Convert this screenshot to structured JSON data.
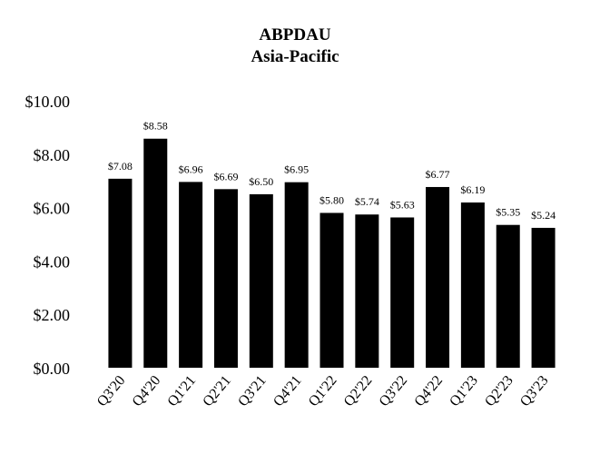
{
  "chart_data": {
    "type": "bar",
    "title": "ABPDAU",
    "subtitle": "Asia-Pacific",
    "xlabel": "",
    "ylabel": "",
    "categories": [
      "Q3'20",
      "Q4'20",
      "Q1'21",
      "Q2'21",
      "Q3'21",
      "Q4'21",
      "Q1'22",
      "Q2'22",
      "Q3'22",
      "Q4'22",
      "Q1'23",
      "Q2'23",
      "Q3'23"
    ],
    "values": [
      7.08,
      8.58,
      6.96,
      6.69,
      6.5,
      6.95,
      5.8,
      5.74,
      5.63,
      6.77,
      6.19,
      5.35,
      5.24
    ],
    "data_labels": [
      "$7.08",
      "$8.58",
      "$6.96",
      "$6.69",
      "$6.50",
      "$6.95",
      "$5.80",
      "$5.74",
      "$5.63",
      "$6.77",
      "$6.19",
      "$5.35",
      "$5.24"
    ],
    "yticks": [
      0,
      2,
      4,
      6,
      8,
      10
    ],
    "ytick_labels": [
      "$0.00",
      "$2.00",
      "$4.00",
      "$6.00",
      "$8.00",
      "$10.00"
    ],
    "ylim": [
      0,
      10
    ],
    "grid": false,
    "legend": "none",
    "bar_color": "#000000"
  }
}
